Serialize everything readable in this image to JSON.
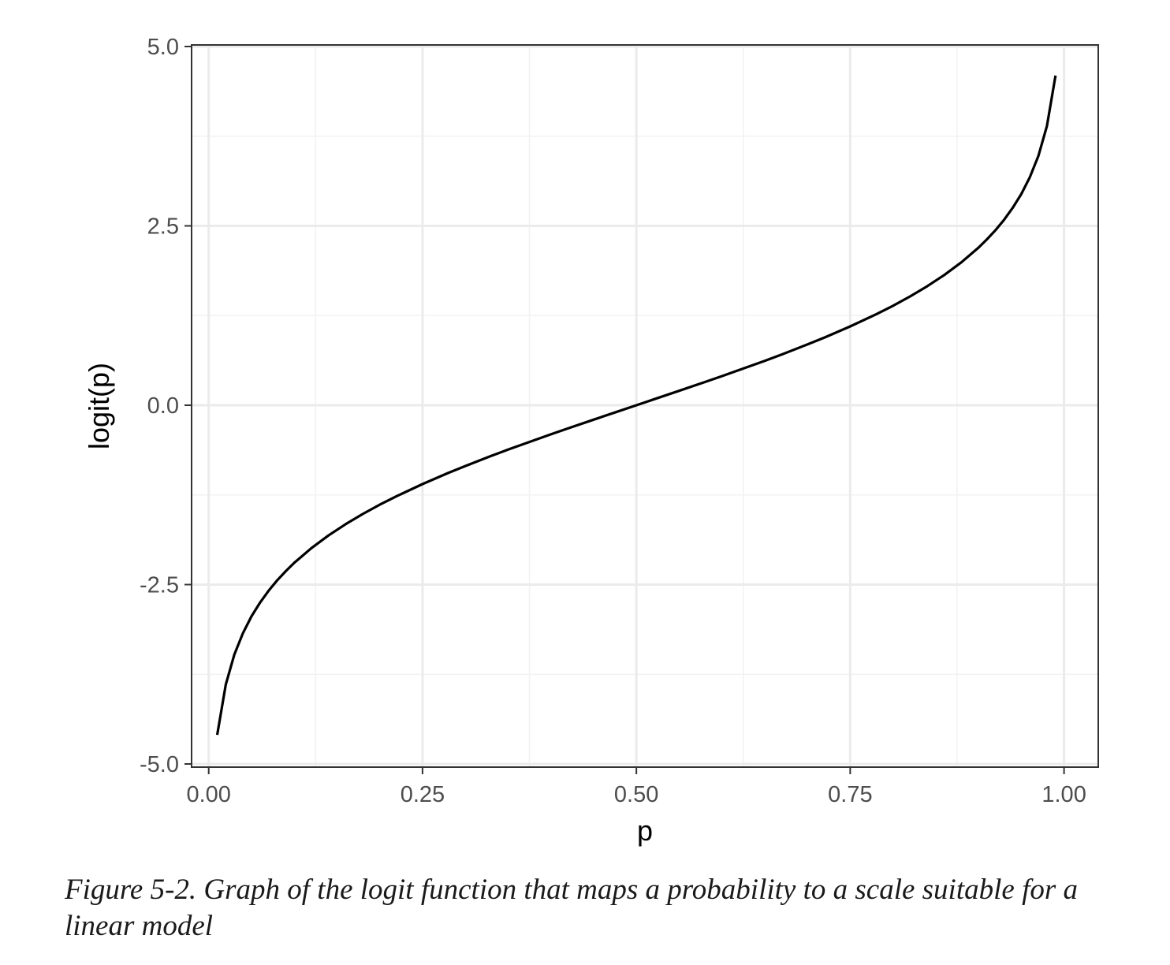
{
  "figure": {
    "caption": "Figure 5-2. Graph of the logit function that maps a probability to a scale suitable for a linear model"
  },
  "chart_data": {
    "type": "line",
    "title": "",
    "xlabel": "p",
    "ylabel": "logit(p)",
    "xlim": [
      -0.02,
      1.04
    ],
    "ylim": [
      -5.0,
      5.0
    ],
    "x_ticks": [
      0.0,
      0.25,
      0.5,
      0.75,
      1.0
    ],
    "x_tick_labels": [
      "0.00",
      "0.25",
      "0.50",
      "0.75",
      "1.00"
    ],
    "y_ticks": [
      -5.0,
      -2.5,
      0.0,
      2.5,
      5.0
    ],
    "y_tick_labels": [
      "-5.0",
      "-2.5",
      "0.0",
      "2.5",
      "5.0"
    ],
    "grid": true,
    "legend": "none",
    "colors": {
      "line": "#000000",
      "panel_border": "#333333",
      "grid_major": "#ebebeb",
      "grid_minor": "#f2f2f2",
      "tick_label": "#4d4d4d"
    },
    "series": [
      {
        "x": [
          0.01,
          0.02,
          0.03,
          0.04,
          0.05,
          0.06,
          0.07,
          0.08,
          0.09,
          0.1,
          0.12,
          0.14,
          0.16,
          0.18,
          0.2,
          0.22,
          0.25,
          0.28,
          0.3,
          0.33,
          0.35,
          0.38,
          0.4,
          0.42,
          0.45,
          0.48,
          0.5,
          0.52,
          0.55,
          0.58,
          0.6,
          0.62,
          0.65,
          0.67,
          0.7,
          0.72,
          0.75,
          0.78,
          0.8,
          0.82,
          0.84,
          0.86,
          0.88,
          0.9,
          0.91,
          0.92,
          0.93,
          0.94,
          0.95,
          0.96,
          0.97,
          0.98,
          0.99
        ],
        "y": [
          -4.595,
          -3.892,
          -3.476,
          -3.178,
          -2.944,
          -2.752,
          -2.587,
          -2.442,
          -2.314,
          -2.197,
          -1.992,
          -1.815,
          -1.658,
          -1.516,
          -1.386,
          -1.266,
          -1.099,
          -0.944,
          -0.847,
          -0.708,
          -0.619,
          -0.49,
          -0.405,
          -0.323,
          -0.201,
          -0.08,
          0.0,
          0.08,
          0.201,
          0.323,
          0.405,
          0.49,
          0.619,
          0.708,
          0.847,
          0.944,
          1.099,
          1.266,
          1.386,
          1.516,
          1.658,
          1.815,
          1.992,
          2.197,
          2.314,
          2.442,
          2.587,
          2.752,
          2.944,
          3.178,
          3.476,
          3.892,
          4.595
        ]
      }
    ]
  }
}
